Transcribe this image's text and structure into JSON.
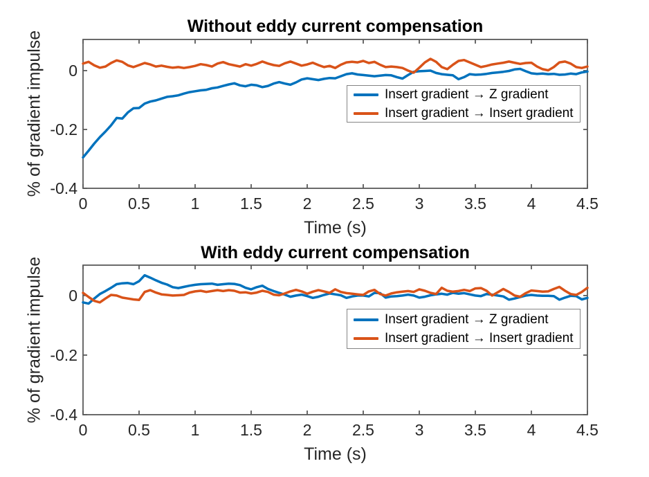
{
  "figure": {
    "background": "#ffffff"
  },
  "palette": {
    "blue": "#0072BD",
    "orange": "#D95319",
    "axis_frame": "#5a5a5a",
    "tick_text": "#262626",
    "title_text": "#000000",
    "legend_border": "#848484",
    "legend_bg": "#ffffff"
  },
  "chart_data": [
    {
      "type": "line",
      "title": "Without eddy current compensation",
      "xlabel": "Time (s)",
      "ylabel": "% of gradient impulse",
      "xlim": [
        0,
        4.5
      ],
      "ylim": [
        -0.4,
        0.106
      ],
      "xticks": [
        0,
        0.5,
        1,
        1.5,
        2,
        2.5,
        3,
        3.5,
        4,
        4.5
      ],
      "xtick_labels": [
        "0",
        "0.5",
        "1",
        "1.5",
        "2",
        "2.5",
        "3",
        "3.5",
        "4",
        "4.5"
      ],
      "yticks": [
        0,
        -0.2,
        -0.4
      ],
      "ytick_labels": [
        "0",
        "-0.2",
        "-0.4"
      ],
      "grid": false,
      "legend_position": "upper right inside",
      "x_start": 0,
      "x_step": 0.05,
      "series": [
        {
          "name": "Insert gradient → Z gradient",
          "color_key": "blue",
          "values": [
            -0.295,
            -0.272,
            -0.248,
            -0.226,
            -0.207,
            -0.186,
            -0.161,
            -0.163,
            -0.142,
            -0.128,
            -0.127,
            -0.112,
            -0.105,
            -0.101,
            -0.095,
            -0.089,
            -0.087,
            -0.084,
            -0.078,
            -0.073,
            -0.07,
            -0.067,
            -0.065,
            -0.06,
            -0.057,
            -0.052,
            -0.047,
            -0.043,
            -0.05,
            -0.053,
            -0.048,
            -0.05,
            -0.056,
            -0.052,
            -0.044,
            -0.039,
            -0.044,
            -0.048,
            -0.04,
            -0.03,
            -0.026,
            -0.029,
            -0.032,
            -0.028,
            -0.025,
            -0.026,
            -0.019,
            -0.012,
            -0.009,
            -0.013,
            -0.015,
            -0.017,
            -0.019,
            -0.017,
            -0.015,
            -0.016,
            -0.022,
            -0.027,
            -0.015,
            -0.004,
            -0.002,
            -0.001,
            0.0,
            -0.008,
            -0.012,
            -0.014,
            -0.016,
            -0.029,
            -0.022,
            -0.012,
            -0.014,
            -0.013,
            -0.011,
            -0.008,
            -0.006,
            -0.004,
            -0.001,
            0.004,
            0.006,
            -0.002,
            -0.009,
            -0.011,
            -0.01,
            -0.012,
            -0.011,
            -0.014,
            -0.013,
            -0.01,
            -0.012,
            -0.006,
            -0.003
          ]
        },
        {
          "name": "Insert gradient → Insert gradient",
          "color_key": "orange",
          "values": [
            0.024,
            0.03,
            0.018,
            0.01,
            0.014,
            0.026,
            0.035,
            0.03,
            0.018,
            0.012,
            0.019,
            0.026,
            0.021,
            0.014,
            0.017,
            0.013,
            0.01,
            0.012,
            0.009,
            0.012,
            0.016,
            0.022,
            0.019,
            0.014,
            0.024,
            0.029,
            0.022,
            0.018,
            0.014,
            0.022,
            0.017,
            0.023,
            0.031,
            0.024,
            0.019,
            0.016,
            0.025,
            0.031,
            0.024,
            0.017,
            0.021,
            0.027,
            0.019,
            0.012,
            0.016,
            0.009,
            0.02,
            0.028,
            0.03,
            0.028,
            0.033,
            0.026,
            0.03,
            0.02,
            0.012,
            0.014,
            0.012,
            0.009,
            0.0,
            -0.007,
            0.01,
            0.028,
            0.04,
            0.03,
            0.012,
            0.005,
            0.02,
            0.033,
            0.036,
            0.028,
            0.02,
            0.012,
            0.016,
            0.021,
            0.024,
            0.027,
            0.031,
            0.027,
            0.023,
            0.026,
            0.027,
            0.014,
            0.005,
            0.001,
            0.012,
            0.028,
            0.031,
            0.024,
            0.012,
            0.009,
            0.014
          ]
        }
      ]
    },
    {
      "type": "line",
      "title": "With eddy current compensation",
      "xlabel": "Time (s)",
      "ylabel": "% of gradient impulse",
      "xlim": [
        0,
        4.5
      ],
      "ylim": [
        -0.4,
        0.102
      ],
      "xticks": [
        0,
        0.5,
        1,
        1.5,
        2,
        2.5,
        3,
        3.5,
        4,
        4.5
      ],
      "xtick_labels": [
        "0",
        "0.5",
        "1",
        "1.5",
        "2",
        "2.5",
        "3",
        "3.5",
        "4",
        "4.5"
      ],
      "yticks": [
        0,
        -0.2,
        -0.4
      ],
      "ytick_labels": [
        "0",
        "-0.2",
        "-0.4"
      ],
      "grid": false,
      "legend_position": "upper right inside",
      "x_start": 0,
      "x_step": 0.05,
      "series": [
        {
          "name": "Insert gradient → Z gradient",
          "color_key": "blue",
          "values": [
            -0.023,
            -0.027,
            -0.01,
            0.005,
            0.015,
            0.026,
            0.038,
            0.041,
            0.042,
            0.038,
            0.048,
            0.068,
            0.06,
            0.051,
            0.043,
            0.037,
            0.028,
            0.025,
            0.029,
            0.033,
            0.036,
            0.038,
            0.039,
            0.04,
            0.036,
            0.038,
            0.04,
            0.039,
            0.035,
            0.026,
            0.021,
            0.028,
            0.033,
            0.022,
            0.015,
            0.009,
            0.003,
            -0.004,
            0.0,
            0.003,
            -0.002,
            -0.008,
            -0.004,
            0.002,
            0.007,
            0.004,
            0.001,
            -0.008,
            -0.003,
            0.0,
            0.0,
            -0.003,
            0.009,
            0.008,
            -0.007,
            -0.003,
            -0.002,
            0.0,
            0.003,
            0.0,
            -0.007,
            -0.004,
            0.001,
            0.004,
            0.006,
            0.003,
            0.009,
            0.006,
            0.008,
            0.004,
            0.0,
            -0.002,
            0.005,
            0.003,
            0.0,
            -0.003,
            -0.014,
            -0.01,
            -0.005,
            0.0,
            0.002,
            0.0,
            -0.001,
            -0.001,
            -0.002,
            -0.014,
            -0.007,
            -0.001,
            -0.002,
            -0.013,
            -0.008
          ]
        },
        {
          "name": "Insert gradient → Insert gradient",
          "color_key": "orange",
          "values": [
            0.009,
            -0.005,
            -0.018,
            -0.023,
            -0.01,
            0.002,
            0.0,
            -0.007,
            -0.01,
            -0.013,
            -0.015,
            0.012,
            0.018,
            0.01,
            0.004,
            0.002,
            0.0,
            0.001,
            0.002,
            0.01,
            0.014,
            0.016,
            0.012,
            0.015,
            0.018,
            0.015,
            0.018,
            0.016,
            0.01,
            0.011,
            0.007,
            0.01,
            0.016,
            0.012,
            0.003,
            0.001,
            0.007,
            0.014,
            0.019,
            0.014,
            0.006,
            0.013,
            0.018,
            0.014,
            0.009,
            0.021,
            0.012,
            0.008,
            0.006,
            0.004,
            0.002,
            0.014,
            0.019,
            0.005,
            0.0,
            0.007,
            0.011,
            0.013,
            0.015,
            0.012,
            0.021,
            0.016,
            0.009,
            0.005,
            0.026,
            0.016,
            0.013,
            0.015,
            0.019,
            0.015,
            0.024,
            0.025,
            0.016,
            0.0,
            0.011,
            0.022,
            0.012,
            0.0,
            -0.004,
            0.008,
            0.017,
            0.015,
            0.013,
            0.014,
            0.022,
            0.029,
            0.016,
            0.005,
            0.002,
            0.012,
            0.026
          ]
        }
      ]
    }
  ]
}
